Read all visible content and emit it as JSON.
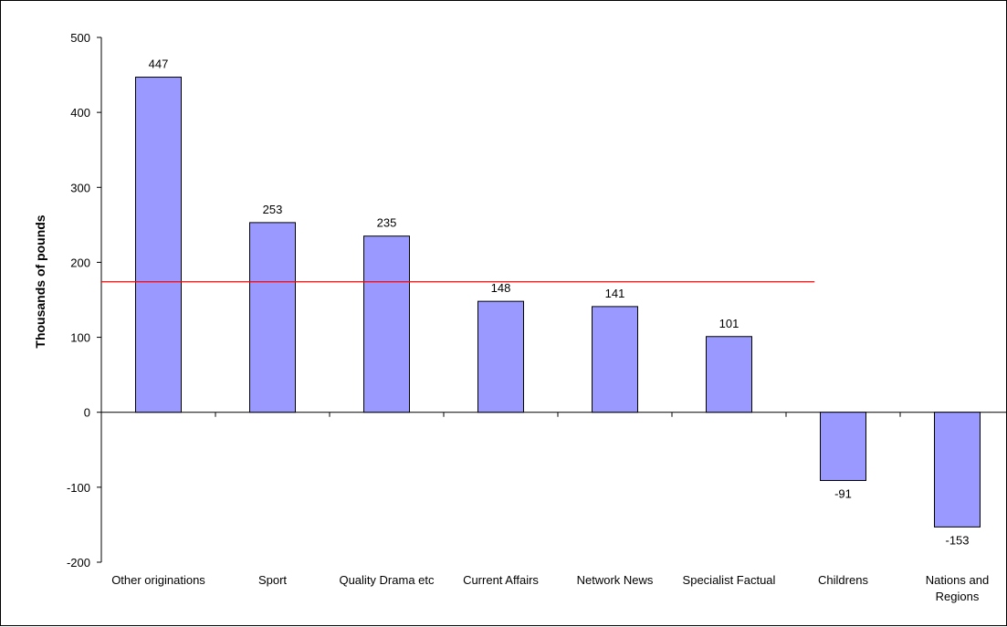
{
  "chart_data": {
    "type": "bar",
    "title": "",
    "xlabel": "",
    "ylabel": "Thousands of pounds",
    "ylim": [
      -200,
      500
    ],
    "yticks": [
      -200,
      -100,
      0,
      100,
      200,
      300,
      400,
      500
    ],
    "categories": [
      "Other originations",
      "Sport",
      "Quality Drama etc",
      "Current Affairs",
      "Network News",
      "Specialist Factual",
      "Childrens",
      "Nations and Regions"
    ],
    "values": [
      447,
      253,
      235,
      148,
      141,
      101,
      -91,
      -153
    ],
    "value_labels": [
      "447",
      "253",
      "235",
      "148",
      "141",
      "101",
      "-91",
      "-153"
    ],
    "reference_line": 174,
    "grid": false,
    "legend": "none",
    "colors": {
      "bar_fill": "#9999ff",
      "bar_stroke": "#000000",
      "reference_line": "#ff0000",
      "axis": "#000000"
    }
  }
}
